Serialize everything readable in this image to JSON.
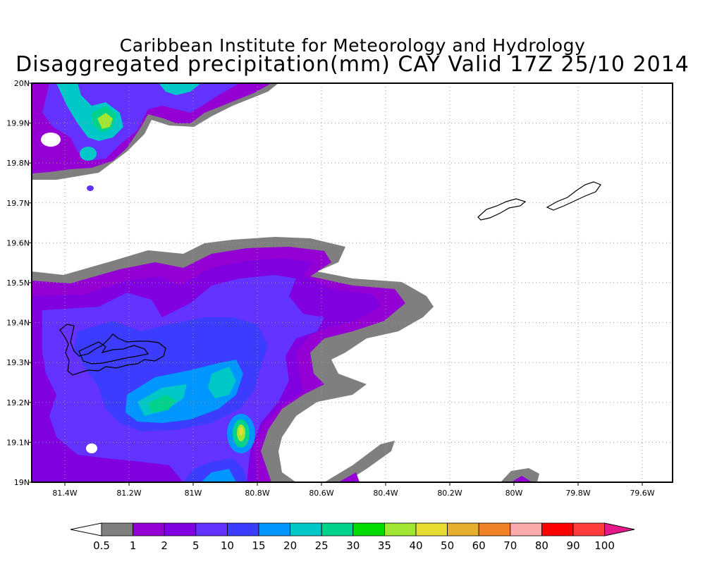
{
  "title_line1": "Caribbean Institute for Meteorology and Hydrology",
  "title_line2": "Disaggregated precipitation(mm) CAY Valid 17Z 25/10 2014",
  "lon_labels": [
    "81.4W",
    "81.2W",
    "81W",
    "80.8W",
    "80.6W",
    "80.4W",
    "80.2W",
    "80W",
    "79.8W",
    "79.6W"
  ],
  "lat_labels": [
    "20N",
    "19.9N",
    "19.8N",
    "19.7N",
    "19.6N",
    "19.5N",
    "19.4N",
    "19.3N",
    "19.2N",
    "19.1N",
    "19N"
  ],
  "colorbar": {
    "labels": [
      "0.5",
      "1",
      "2",
      "5",
      "10",
      "15",
      "20",
      "25",
      "30",
      "35",
      "40",
      "50",
      "60",
      "70",
      "80",
      "90",
      "100"
    ],
    "colors": [
      "#7f7f7f",
      "#9400d3",
      "#8000e0",
      "#6432ff",
      "#3c3cff",
      "#0096ff",
      "#00c8c8",
      "#00d28c",
      "#00dc00",
      "#a0e632",
      "#e6dc32",
      "#e6af2d",
      "#f08228",
      "#faaaaa",
      "#ff0000",
      "#ff3c3c"
    ],
    "under_color": "#ffffff",
    "over_color": "#e6198c"
  },
  "legend_colors": {
    "grey": "#7f7f7f",
    "purple": "#9400d3",
    "violet": "#8000e0",
    "blue_violet": "#6432ff",
    "blue": "#3c3cff",
    "sky": "#0096ff",
    "teal": "#00c8c8",
    "aqua_green": "#00d28c",
    "green": "#00dc00",
    "yellow_green": "#a0e632",
    "yellow": "#e6dc32"
  }
}
